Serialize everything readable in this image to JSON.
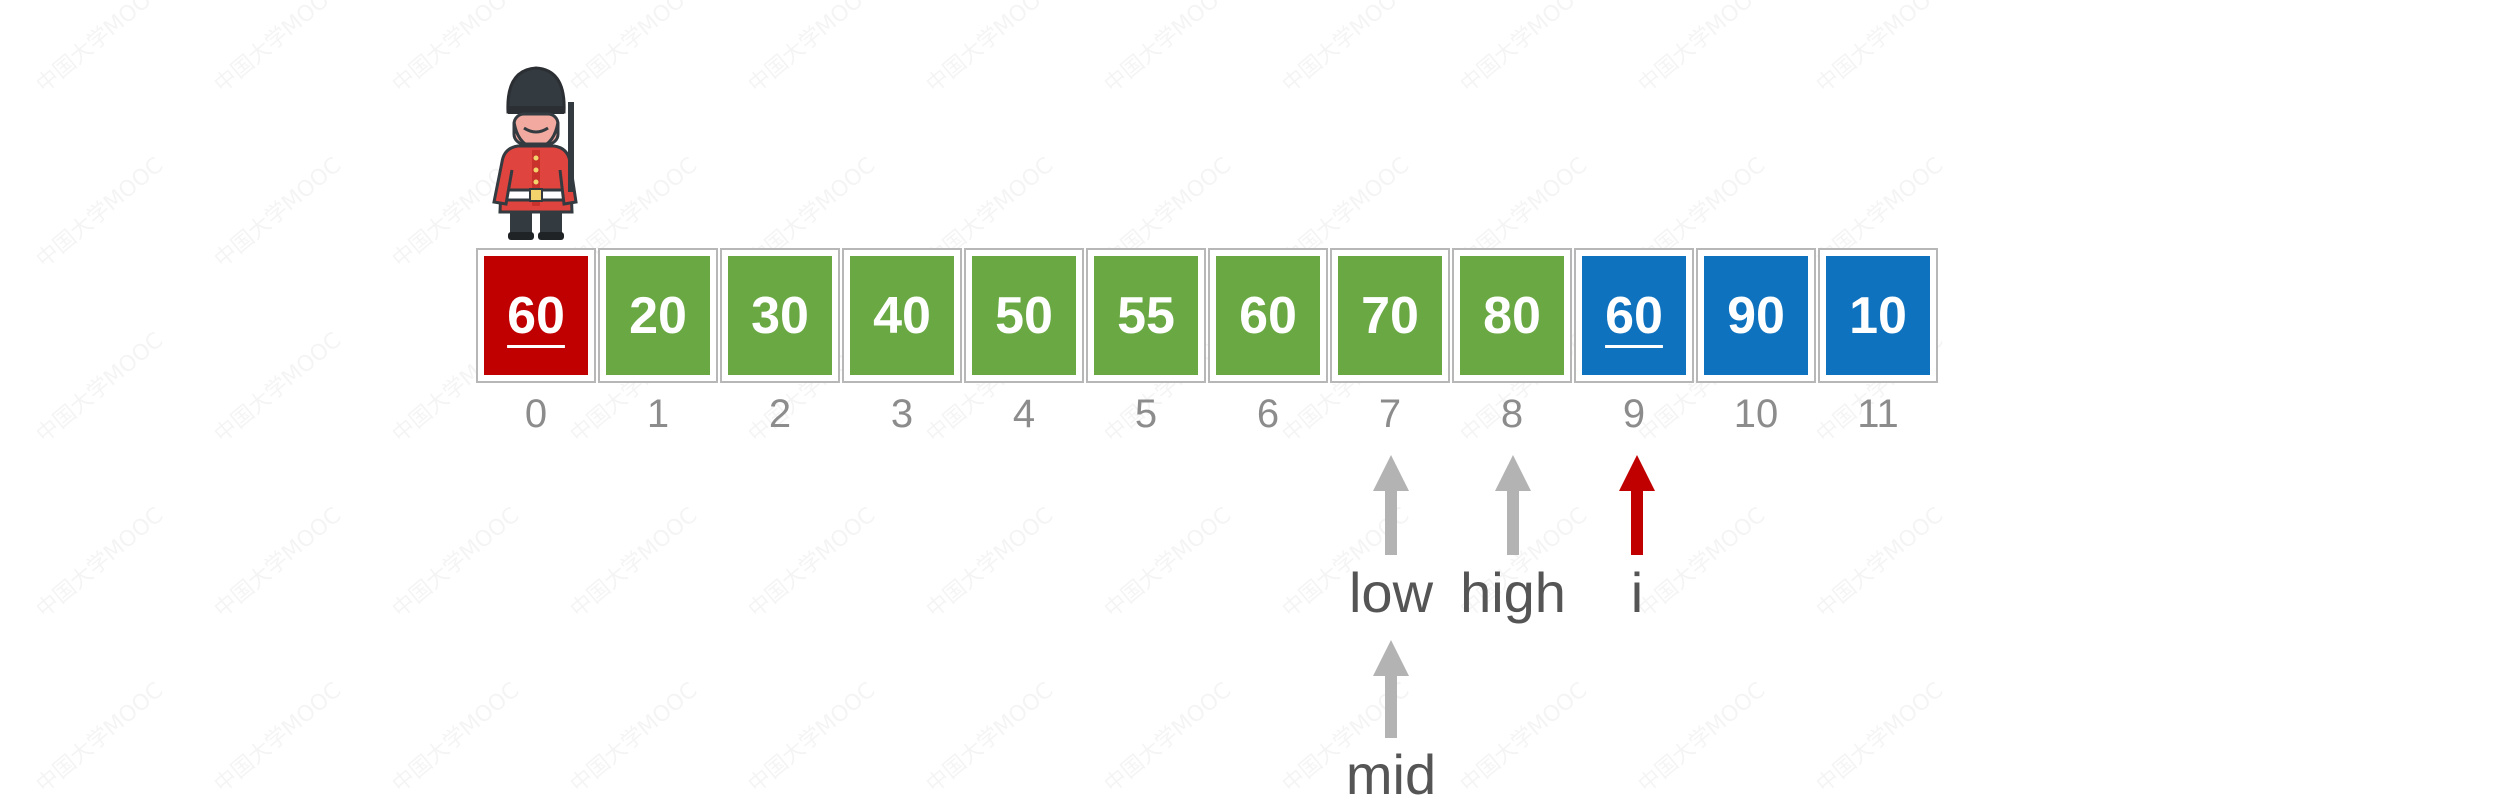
{
  "diagram": {
    "cells": [
      {
        "index": "0",
        "value": "60",
        "color": "#c00000",
        "underlined": true
      },
      {
        "index": "1",
        "value": "20",
        "color": "#6aa844",
        "underlined": false
      },
      {
        "index": "2",
        "value": "30",
        "color": "#6aa844",
        "underlined": false
      },
      {
        "index": "3",
        "value": "40",
        "color": "#6aa844",
        "underlined": false
      },
      {
        "index": "4",
        "value": "50",
        "color": "#6aa844",
        "underlined": false
      },
      {
        "index": "5",
        "value": "55",
        "color": "#6aa844",
        "underlined": false
      },
      {
        "index": "6",
        "value": "60",
        "color": "#6aa844",
        "underlined": false
      },
      {
        "index": "7",
        "value": "70",
        "color": "#6aa844",
        "underlined": false
      },
      {
        "index": "8",
        "value": "80",
        "color": "#6aa844",
        "underlined": false
      },
      {
        "index": "9",
        "value": "60",
        "color": "#0e72be",
        "underlined": true
      },
      {
        "index": "10",
        "value": "90",
        "color": "#0e72be",
        "underlined": false
      },
      {
        "index": "11",
        "value": "10",
        "color": "#0e72be",
        "underlined": false
      }
    ],
    "pointers": {
      "low": {
        "label": "low",
        "target_index": 7,
        "color": "#b3b3b3"
      },
      "high": {
        "label": "high",
        "target_index": 8,
        "color": "#b3b3b3"
      },
      "i": {
        "label": "i",
        "target_index": 9,
        "color": "#c00000"
      },
      "mid": {
        "label": "mid",
        "target_index": 7,
        "color": "#b3b3b3"
      }
    },
    "sentinel_icon": "guard-soldier-icon",
    "watermark_text": "中国大学MOOC"
  }
}
